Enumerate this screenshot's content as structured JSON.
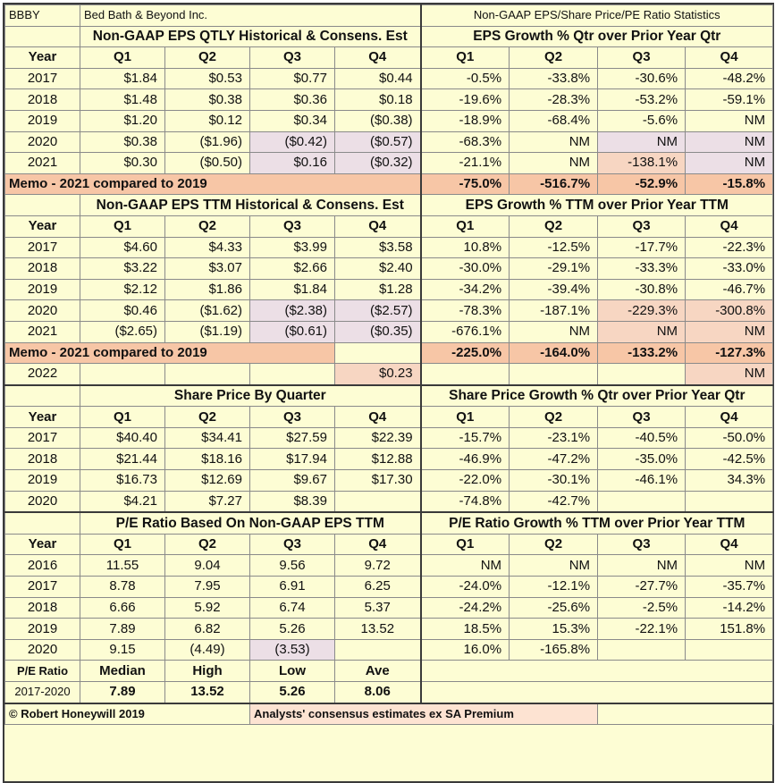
{
  "header": {
    "ticker": "BBBY",
    "company": "Bed Bath & Beyond Inc.",
    "title": "Non-GAAP EPS/Share Price/PE Ratio Statistics"
  },
  "labels": {
    "year": "Year",
    "q1": "Q1",
    "q2": "Q2",
    "q3": "Q3",
    "q4": "Q4"
  },
  "sec1": {
    "left_title": "Non-GAAP EPS QTLY Historical & Consens. Est",
    "right_title": "EPS Growth % Qtr over Prior Year Qtr",
    "rows": [
      {
        "year": "2017",
        "eps": [
          "$1.84",
          "$0.53",
          "$0.77",
          "$0.44"
        ],
        "growth": [
          "-0.5%",
          "-33.8%",
          "-30.6%",
          "-48.2%"
        ]
      },
      {
        "year": "2018",
        "eps": [
          "$1.48",
          "$0.38",
          "$0.36",
          "$0.18"
        ],
        "growth": [
          "-19.6%",
          "-28.3%",
          "-53.2%",
          "-59.1%"
        ]
      },
      {
        "year": "2019",
        "eps": [
          "$1.20",
          "$0.12",
          "$0.34",
          "($0.38)"
        ],
        "growth": [
          "-18.9%",
          "-68.4%",
          "-5.6%",
          "NM"
        ]
      },
      {
        "year": "2020",
        "eps": [
          "$0.38",
          "($1.96)",
          "($0.42)",
          "($0.57)"
        ],
        "growth": [
          "-68.3%",
          "NM",
          "NM",
          "NM"
        ]
      },
      {
        "year": "2021",
        "eps": [
          "$0.30",
          "($0.50)",
          "$0.16",
          "($0.32)"
        ],
        "growth": [
          "-21.1%",
          "NM",
          "-138.1%",
          "NM"
        ]
      }
    ],
    "memo_label": "Memo - 2021 compared to 2019",
    "memo": [
      "-75.0%",
      "-516.7%",
      "-52.9%",
      "-15.8%"
    ]
  },
  "sec2": {
    "left_title": "Non-GAAP EPS TTM Historical & Consens. Est",
    "right_title": "EPS Growth % TTM over Prior Year TTM",
    "rows": [
      {
        "year": "2017",
        "eps": [
          "$4.60",
          "$4.33",
          "$3.99",
          "$3.58"
        ],
        "growth": [
          "10.8%",
          "-12.5%",
          "-17.7%",
          "-22.3%"
        ]
      },
      {
        "year": "2018",
        "eps": [
          "$3.22",
          "$3.07",
          "$2.66",
          "$2.40"
        ],
        "growth": [
          "-30.0%",
          "-29.1%",
          "-33.3%",
          "-33.0%"
        ]
      },
      {
        "year": "2019",
        "eps": [
          "$2.12",
          "$1.86",
          "$1.84",
          "$1.28"
        ],
        "growth": [
          "-34.2%",
          "-39.4%",
          "-30.8%",
          "-46.7%"
        ]
      },
      {
        "year": "2020",
        "eps": [
          "$0.46",
          "($1.62)",
          "($2.38)",
          "($2.57)"
        ],
        "growth": [
          "-78.3%",
          "-187.1%",
          "-229.3%",
          "-300.8%"
        ]
      },
      {
        "year": "2021",
        "eps": [
          "($2.65)",
          "($1.19)",
          "($0.61)",
          "($0.35)"
        ],
        "growth": [
          "-676.1%",
          "NM",
          "NM",
          "NM"
        ]
      }
    ],
    "memo_label": "Memo - 2021 compared to 2019",
    "memo": [
      "-225.0%",
      "-164.0%",
      "-133.2%",
      "-127.3%"
    ],
    "row2022": {
      "year": "2022",
      "q4": "$0.23",
      "growth_q4": "NM"
    }
  },
  "sec3": {
    "left_title": "Share Price By Quarter",
    "right_title": "Share Price Growth % Qtr over Prior Year Qtr",
    "rows": [
      {
        "year": "2017",
        "price": [
          "$40.40",
          "$34.41",
          "$27.59",
          "$22.39"
        ],
        "growth": [
          "-15.7%",
          "-23.1%",
          "-40.5%",
          "-50.0%"
        ]
      },
      {
        "year": "2018",
        "price": [
          "$21.44",
          "$18.16",
          "$17.94",
          "$12.88"
        ],
        "growth": [
          "-46.9%",
          "-47.2%",
          "-35.0%",
          "-42.5%"
        ]
      },
      {
        "year": "2019",
        "price": [
          "$16.73",
          "$12.69",
          "$9.67",
          "$17.30"
        ],
        "growth": [
          "-22.0%",
          "-30.1%",
          "-46.1%",
          "34.3%"
        ]
      },
      {
        "year": "2020",
        "price": [
          "$4.21",
          "$7.27",
          "$8.39",
          ""
        ],
        "growth": [
          "-74.8%",
          "-42.7%",
          "",
          ""
        ]
      }
    ]
  },
  "sec4": {
    "left_title": "P/E Ratio Based On Non-GAAP EPS TTM",
    "right_title": "P/E Ratio Growth % TTM over Prior Year TTM",
    "rows": [
      {
        "year": "2016",
        "pe": [
          "11.55",
          "9.04",
          "9.56",
          "9.72"
        ],
        "growth": [
          "NM",
          "NM",
          "NM",
          "NM"
        ]
      },
      {
        "year": "2017",
        "pe": [
          "8.78",
          "7.95",
          "6.91",
          "6.25"
        ],
        "growth": [
          "-24.0%",
          "-12.1%",
          "-27.7%",
          "-35.7%"
        ]
      },
      {
        "year": "2018",
        "pe": [
          "6.66",
          "5.92",
          "6.74",
          "5.37"
        ],
        "growth": [
          "-24.2%",
          "-25.6%",
          "-2.5%",
          "-14.2%"
        ]
      },
      {
        "year": "2019",
        "pe": [
          "7.89",
          "6.82",
          "5.26",
          "13.52"
        ],
        "growth": [
          "18.5%",
          "15.3%",
          "-22.1%",
          "151.8%"
        ]
      },
      {
        "year": "2020",
        "pe": [
          "9.15",
          "(4.49)",
          "(3.53)",
          ""
        ],
        "growth": [
          "16.0%",
          "-165.8%",
          "",
          ""
        ]
      }
    ],
    "stats_label": "P/E Ratio",
    "stats_period": "2017-2020",
    "stats_headers": [
      "Median",
      "High",
      "Low",
      "Ave"
    ],
    "stats_values": [
      "7.89",
      "13.52",
      "5.26",
      "8.06"
    ]
  },
  "footer": {
    "copyright": "© Robert Honeywill 2019",
    "source": "Analysts' consensus estimates ex SA Premium"
  }
}
